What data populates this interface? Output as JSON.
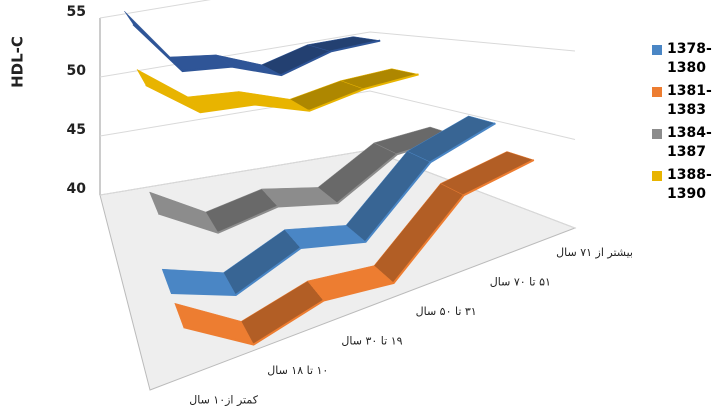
{
  "chart_data": {
    "type": "line3d",
    "ylabel": "HDL-C",
    "categories": [
      "کمتر از۱۰ سال",
      "۱۰ تا ۱۸ سال",
      "۱۹ تا ۳۰ سال",
      "۳۱ تا ۵۰ سال",
      "۵۱ تا ۷۰ سال",
      "بیشتر از ۷۱ سال"
    ],
    "series": [
      {
        "name": "1378-1380",
        "color": "#4a86c5",
        "values": [
          42.5,
          41,
          42.5,
          41.5,
          45,
          46
        ]
      },
      {
        "name": "1381-1383",
        "color": "#ed7d31",
        "values": [
          42.5,
          40,
          41,
          40.5,
          44,
          44.5
        ]
      },
      {
        "name": "1384-1387",
        "color": "#8c8c8c",
        "values": [
          45.5,
          43,
          43.5,
          42.5,
          44.5,
          44.5
        ]
      },
      {
        "name": "1388-1390",
        "color": "#e8b400",
        "values": [
          52.5,
          49.5,
          49,
          47.5,
          48,
          48
        ]
      },
      {
        "color": "#2f5597",
        "values": [
          55.5,
          51,
          50.5,
          49,
          50,
          50
        ]
      }
    ],
    "ylim": [
      40,
      55
    ],
    "yticks": [
      40,
      45,
      50,
      55
    ],
    "grid": true
  }
}
